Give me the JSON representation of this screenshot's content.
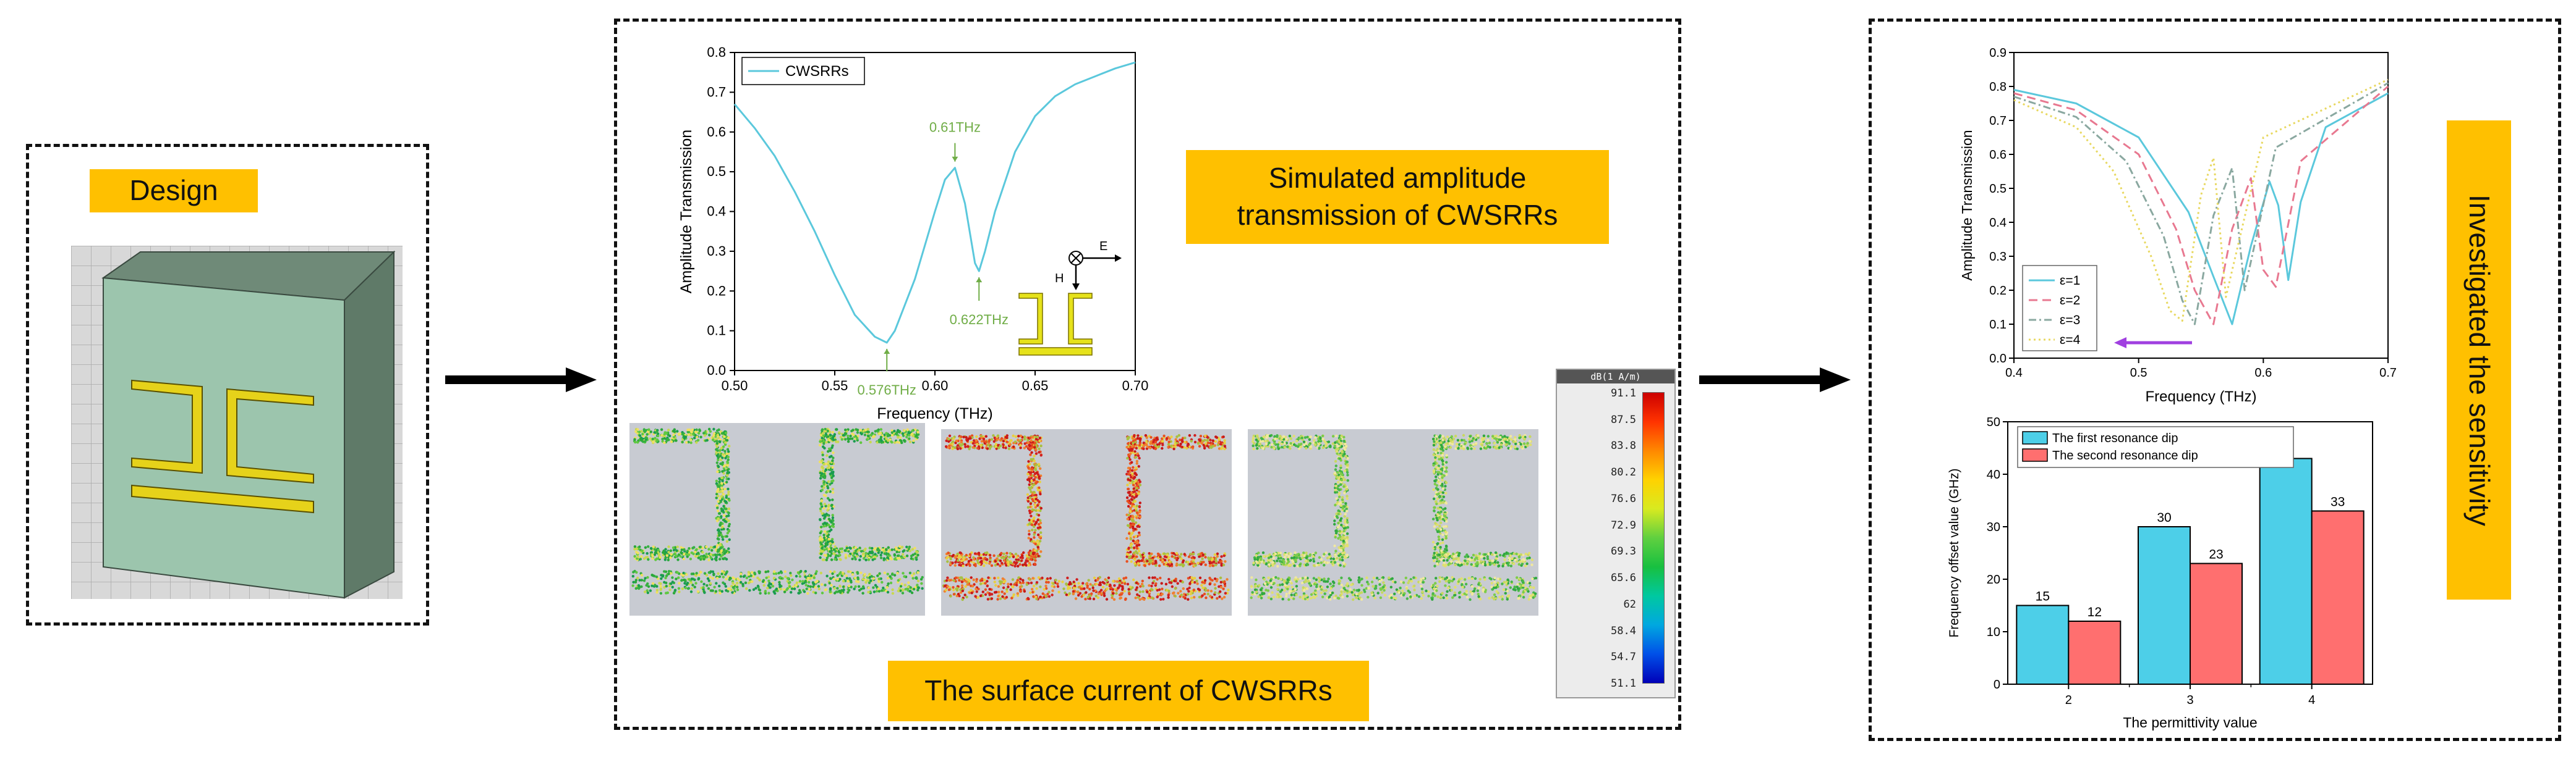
{
  "design_panel": {
    "label": "Design",
    "colors": {
      "substrate": "#9cc5ad",
      "substrate_side": "#6f8a78",
      "metal": "#e6d21a",
      "grid": "#b9b9b9"
    }
  },
  "center_panel": {
    "simulated_label": "Simulated amplitude transmission of CWSRRs",
    "surface_label": "The surface current of CWSRRs",
    "field_labels": {
      "E": "E",
      "H": "H"
    },
    "colorbar": {
      "title": "dB(1 A/m)",
      "ticks": [
        "91.1",
        "87.5",
        "83.8",
        "80.2",
        "76.6",
        "72.9",
        "69.3",
        "65.6",
        "62",
        "58.4",
        "54.7",
        "51.1"
      ]
    }
  },
  "right_panel": {
    "vertical_label": "Investigated the sensitivity"
  },
  "colors": {
    "accent": "#ffc000",
    "curve": "#5bc8dc",
    "annotation": "#70ad47",
    "bar1": "#4dcfe8",
    "bar2": "#ff6f6f",
    "shift_arrow": "#a040e0"
  },
  "chart_data": [
    {
      "type": "line",
      "title": "",
      "xlabel": "Frequency (THz)",
      "ylabel": "Amplitude Transmission",
      "xlim": [
        0.5,
        0.7
      ],
      "ylim": [
        0.0,
        0.8
      ],
      "xticks": [
        "0.50",
        "0.55",
        "0.60",
        "0.65",
        "0.70"
      ],
      "yticks": [
        "0.0",
        "0.1",
        "0.2",
        "0.3",
        "0.4",
        "0.5",
        "0.6",
        "0.7",
        "0.8"
      ],
      "legend": "CWSRRs",
      "series": [
        {
          "name": "CWSRRs",
          "x": [
            0.5,
            0.51,
            0.52,
            0.53,
            0.54,
            0.55,
            0.56,
            0.57,
            0.576,
            0.58,
            0.59,
            0.6,
            0.605,
            0.61,
            0.615,
            0.62,
            0.622,
            0.625,
            0.63,
            0.64,
            0.65,
            0.66,
            0.67,
            0.68,
            0.69,
            0.7
          ],
          "y": [
            0.67,
            0.61,
            0.54,
            0.45,
            0.35,
            0.24,
            0.14,
            0.085,
            0.07,
            0.1,
            0.23,
            0.4,
            0.48,
            0.51,
            0.42,
            0.27,
            0.25,
            0.3,
            0.4,
            0.55,
            0.64,
            0.69,
            0.72,
            0.74,
            0.76,
            0.775
          ]
        }
      ],
      "annotations": [
        {
          "x": 0.576,
          "y": 0.07,
          "text": "0.576THz"
        },
        {
          "x": 0.61,
          "y": 0.51,
          "text": "0.61THz"
        },
        {
          "x": 0.622,
          "y": 0.25,
          "text": "0.622THz"
        }
      ]
    },
    {
      "type": "line",
      "title": "",
      "xlabel": "Frequency (THz)",
      "ylabel": "Amplitude Transmission",
      "xlim": [
        0.4,
        0.7
      ],
      "ylim": [
        0.0,
        0.9
      ],
      "xticks": [
        "0.4",
        "0.5",
        "0.6",
        "0.7"
      ],
      "yticks": [
        "0.0",
        "0.1",
        "0.2",
        "0.3",
        "0.4",
        "0.5",
        "0.6",
        "0.7",
        "0.8",
        "0.9"
      ],
      "legend_position": "bottom-left",
      "series": [
        {
          "name": "ε=1",
          "x": [
            0.4,
            0.45,
            0.5,
            0.54,
            0.56,
            0.575,
            0.59,
            0.605,
            0.612,
            0.62,
            0.63,
            0.65,
            0.7
          ],
          "y": [
            0.79,
            0.75,
            0.65,
            0.43,
            0.24,
            0.1,
            0.33,
            0.52,
            0.45,
            0.23,
            0.46,
            0.68,
            0.78
          ]
        },
        {
          "name": "ε=2",
          "x": [
            0.4,
            0.45,
            0.5,
            0.53,
            0.545,
            0.56,
            0.575,
            0.59,
            0.6,
            0.61,
            0.63,
            0.7
          ],
          "y": [
            0.78,
            0.73,
            0.6,
            0.38,
            0.2,
            0.1,
            0.38,
            0.53,
            0.26,
            0.21,
            0.58,
            0.8
          ]
        },
        {
          "name": "ε=3",
          "x": [
            0.4,
            0.45,
            0.49,
            0.52,
            0.535,
            0.545,
            0.56,
            0.575,
            0.585,
            0.61,
            0.7
          ],
          "y": [
            0.77,
            0.71,
            0.58,
            0.36,
            0.17,
            0.1,
            0.42,
            0.56,
            0.2,
            0.62,
            0.81
          ]
        },
        {
          "name": "ε=4",
          "x": [
            0.4,
            0.45,
            0.48,
            0.51,
            0.525,
            0.535,
            0.55,
            0.56,
            0.57,
            0.6,
            0.7
          ],
          "y": [
            0.76,
            0.68,
            0.55,
            0.3,
            0.14,
            0.11,
            0.48,
            0.59,
            0.18,
            0.65,
            0.82
          ]
        }
      ]
    },
    {
      "type": "bar",
      "title": "",
      "xlabel": "The permittivity value",
      "ylabel": "Frequency offset value (GHz)",
      "ylim": [
        0,
        50
      ],
      "yticks": [
        "0",
        "10",
        "20",
        "30",
        "40",
        "50"
      ],
      "categories": [
        "2",
        "3",
        "4"
      ],
      "series": [
        {
          "name": "The first resonance dip",
          "values": [
            15,
            30,
            43
          ]
        },
        {
          "name": "The second resonance dip",
          "values": [
            12,
            23,
            33
          ]
        }
      ],
      "legend_position": "top-left"
    }
  ]
}
